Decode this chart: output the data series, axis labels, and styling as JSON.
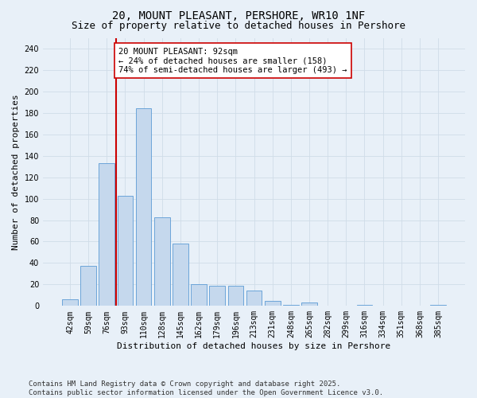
{
  "title": "20, MOUNT PLEASANT, PERSHORE, WR10 1NF",
  "subtitle": "Size of property relative to detached houses in Pershore",
  "xlabel": "Distribution of detached houses by size in Pershore",
  "ylabel": "Number of detached properties",
  "categories": [
    "42sqm",
    "59sqm",
    "76sqm",
    "93sqm",
    "110sqm",
    "128sqm",
    "145sqm",
    "162sqm",
    "179sqm",
    "196sqm",
    "213sqm",
    "231sqm",
    "248sqm",
    "265sqm",
    "282sqm",
    "299sqm",
    "316sqm",
    "334sqm",
    "351sqm",
    "368sqm",
    "385sqm"
  ],
  "values": [
    6,
    37,
    133,
    103,
    184,
    83,
    58,
    20,
    19,
    19,
    14,
    5,
    1,
    3,
    0,
    0,
    1,
    0,
    0,
    0,
    1
  ],
  "bar_color": "#c5d8ed",
  "bar_edge_color": "#5b9bd5",
  "grid_color": "#d0dce8",
  "background_color": "#e8f0f8",
  "property_line_color": "#cc0000",
  "annotation_text": "20 MOUNT PLEASANT: 92sqm\n← 24% of detached houses are smaller (158)\n74% of semi-detached houses are larger (493) →",
  "annotation_box_color": "#ffffff",
  "annotation_box_edge_color": "#cc0000",
  "ylim": [
    0,
    250
  ],
  "yticks": [
    0,
    20,
    40,
    60,
    80,
    100,
    120,
    140,
    160,
    180,
    200,
    220,
    240
  ],
  "footer": "Contains HM Land Registry data © Crown copyright and database right 2025.\nContains public sector information licensed under the Open Government Licence v3.0.",
  "title_fontsize": 10,
  "subtitle_fontsize": 9,
  "axis_label_fontsize": 8,
  "tick_fontsize": 7,
  "annotation_fontsize": 7.5,
  "footer_fontsize": 6.5
}
